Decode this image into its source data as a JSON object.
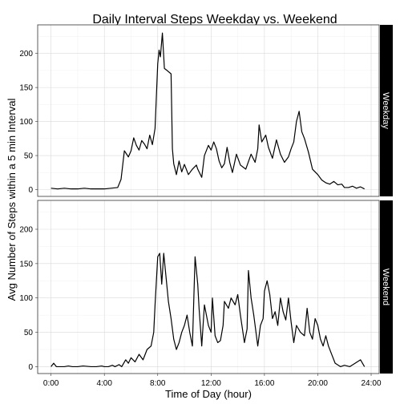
{
  "chart_data": {
    "type": "line",
    "title": "Daily Interval Steps Weekday vs. Weekend",
    "xlabel": "Time of Day (hour)",
    "ylabel": "Avg Number of Steps within a 5 min Interval",
    "xlim": [
      -1,
      24.6
    ],
    "ylim": [
      -10,
      242
    ],
    "x_ticks": [
      0,
      4,
      8,
      12,
      16,
      20,
      24
    ],
    "x_tick_labels": [
      "0:00",
      "4:00",
      "8:00",
      "12:00",
      "16:00",
      "20:00",
      "24:00"
    ],
    "y_ticks": [
      0,
      50,
      100,
      150,
      200
    ],
    "y_tick_labels": [
      "0",
      "50",
      "100",
      "150",
      "200"
    ],
    "grid": true,
    "colors": {
      "line": "#000000",
      "strip_bg": "#000000",
      "strip_text": "#ffffff",
      "grid": "#d9d9d9"
    },
    "panels": [
      {
        "name": "Weekday",
        "points": [
          [
            0,
            2
          ],
          [
            0.5,
            1
          ],
          [
            1,
            2
          ],
          [
            1.5,
            1
          ],
          [
            2,
            1
          ],
          [
            2.5,
            2
          ],
          [
            3,
            1
          ],
          [
            3.5,
            1
          ],
          [
            4,
            1
          ],
          [
            4.5,
            2
          ],
          [
            5,
            3
          ],
          [
            5.25,
            15
          ],
          [
            5.5,
            57
          ],
          [
            5.8,
            48
          ],
          [
            6,
            57
          ],
          [
            6.2,
            76
          ],
          [
            6.4,
            65
          ],
          [
            6.6,
            58
          ],
          [
            6.8,
            72
          ],
          [
            7,
            67
          ],
          [
            7.2,
            60
          ],
          [
            7.4,
            80
          ],
          [
            7.6,
            66
          ],
          [
            7.8,
            90
          ],
          [
            8,
            185
          ],
          [
            8.1,
            205
          ],
          [
            8.2,
            195
          ],
          [
            8.35,
            230
          ],
          [
            8.5,
            178
          ],
          [
            8.7,
            175
          ],
          [
            9,
            170
          ],
          [
            9.1,
            60
          ],
          [
            9.2,
            38
          ],
          [
            9.4,
            22
          ],
          [
            9.6,
            42
          ],
          [
            9.8,
            26
          ],
          [
            10,
            37
          ],
          [
            10.3,
            22
          ],
          [
            10.6,
            30
          ],
          [
            10.9,
            36
          ],
          [
            11,
            30
          ],
          [
            11.3,
            18
          ],
          [
            11.5,
            50
          ],
          [
            11.8,
            65
          ],
          [
            12,
            58
          ],
          [
            12.2,
            70
          ],
          [
            12.4,
            60
          ],
          [
            12.6,
            42
          ],
          [
            12.8,
            32
          ],
          [
            13,
            38
          ],
          [
            13.2,
            62
          ],
          [
            13.4,
            40
          ],
          [
            13.6,
            25
          ],
          [
            13.9,
            52
          ],
          [
            14.2,
            36
          ],
          [
            14.6,
            30
          ],
          [
            15,
            52
          ],
          [
            15.3,
            40
          ],
          [
            15.5,
            60
          ],
          [
            15.6,
            95
          ],
          [
            15.8,
            70
          ],
          [
            16.1,
            80
          ],
          [
            16.3,
            62
          ],
          [
            16.6,
            46
          ],
          [
            16.9,
            73
          ],
          [
            17.2,
            52
          ],
          [
            17.5,
            40
          ],
          [
            17.8,
            48
          ],
          [
            18,
            60
          ],
          [
            18.2,
            70
          ],
          [
            18.4,
            100
          ],
          [
            18.6,
            115
          ],
          [
            18.8,
            85
          ],
          [
            19,
            75
          ],
          [
            19.3,
            55
          ],
          [
            19.6,
            30
          ],
          [
            20,
            22
          ],
          [
            20.3,
            14
          ],
          [
            20.6,
            10
          ],
          [
            20.9,
            8
          ],
          [
            21.2,
            12
          ],
          [
            21.5,
            7
          ],
          [
            21.8,
            8
          ],
          [
            22,
            3
          ],
          [
            22.3,
            3
          ],
          [
            22.6,
            5
          ],
          [
            22.9,
            2
          ],
          [
            23.2,
            4
          ],
          [
            23.5,
            1
          ]
        ]
      },
      {
        "name": "Weekend",
        "points": [
          [
            0,
            0
          ],
          [
            0.2,
            5
          ],
          [
            0.4,
            0
          ],
          [
            0.7,
            0
          ],
          [
            1,
            0
          ],
          [
            1.3,
            1
          ],
          [
            1.6,
            0
          ],
          [
            2,
            0
          ],
          [
            2.4,
            1
          ],
          [
            3,
            0
          ],
          [
            3.4,
            0
          ],
          [
            3.8,
            1
          ],
          [
            4,
            0
          ],
          [
            4.3,
            0
          ],
          [
            4.6,
            2
          ],
          [
            4.8,
            0
          ],
          [
            5.1,
            3
          ],
          [
            5.3,
            0
          ],
          [
            5.6,
            10
          ],
          [
            5.8,
            5
          ],
          [
            6,
            13
          ],
          [
            6.3,
            7
          ],
          [
            6.6,
            18
          ],
          [
            6.9,
            10
          ],
          [
            7.2,
            25
          ],
          [
            7.5,
            30
          ],
          [
            7.7,
            50
          ],
          [
            7.8,
            90
          ],
          [
            8,
            160
          ],
          [
            8.15,
            165
          ],
          [
            8.3,
            120
          ],
          [
            8.45,
            165
          ],
          [
            8.6,
            135
          ],
          [
            8.8,
            95
          ],
          [
            9,
            70
          ],
          [
            9.2,
            40
          ],
          [
            9.4,
            25
          ],
          [
            9.6,
            35
          ],
          [
            9.8,
            50
          ],
          [
            10,
            60
          ],
          [
            10.2,
            75
          ],
          [
            10.4,
            50
          ],
          [
            10.6,
            30
          ],
          [
            10.8,
            160
          ],
          [
            11,
            120
          ],
          [
            11.1,
            85
          ],
          [
            11.3,
            30
          ],
          [
            11.5,
            90
          ],
          [
            11.8,
            60
          ],
          [
            12,
            50
          ],
          [
            12.1,
            100
          ],
          [
            12.3,
            45
          ],
          [
            12.5,
            35
          ],
          [
            12.7,
            38
          ],
          [
            12.9,
            60
          ],
          [
            13,
            95
          ],
          [
            13.3,
            85
          ],
          [
            13.5,
            100
          ],
          [
            13.8,
            90
          ],
          [
            14,
            105
          ],
          [
            14.2,
            75
          ],
          [
            14.5,
            35
          ],
          [
            14.7,
            55
          ],
          [
            14.8,
            140
          ],
          [
            15,
            100
          ],
          [
            15.2,
            75
          ],
          [
            15.5,
            30
          ],
          [
            15.7,
            60
          ],
          [
            15.9,
            70
          ],
          [
            16,
            110
          ],
          [
            16.2,
            125
          ],
          [
            16.4,
            105
          ],
          [
            16.6,
            70
          ],
          [
            16.8,
            80
          ],
          [
            17,
            60
          ],
          [
            17.2,
            100
          ],
          [
            17.4,
            80
          ],
          [
            17.6,
            68
          ],
          [
            17.8,
            100
          ],
          [
            18,
            65
          ],
          [
            18.2,
            35
          ],
          [
            18.4,
            60
          ],
          [
            18.7,
            50
          ],
          [
            19,
            45
          ],
          [
            19.2,
            85
          ],
          [
            19.4,
            50
          ],
          [
            19.6,
            40
          ],
          [
            19.8,
            70
          ],
          [
            20,
            60
          ],
          [
            20.2,
            40
          ],
          [
            20.4,
            30
          ],
          [
            20.6,
            45
          ],
          [
            20.8,
            30
          ],
          [
            21,
            20
          ],
          [
            21.3,
            5
          ],
          [
            21.7,
            0
          ],
          [
            22,
            2
          ],
          [
            22.4,
            0
          ],
          [
            22.8,
            5
          ],
          [
            23.2,
            10
          ],
          [
            23.5,
            0
          ]
        ]
      }
    ]
  }
}
